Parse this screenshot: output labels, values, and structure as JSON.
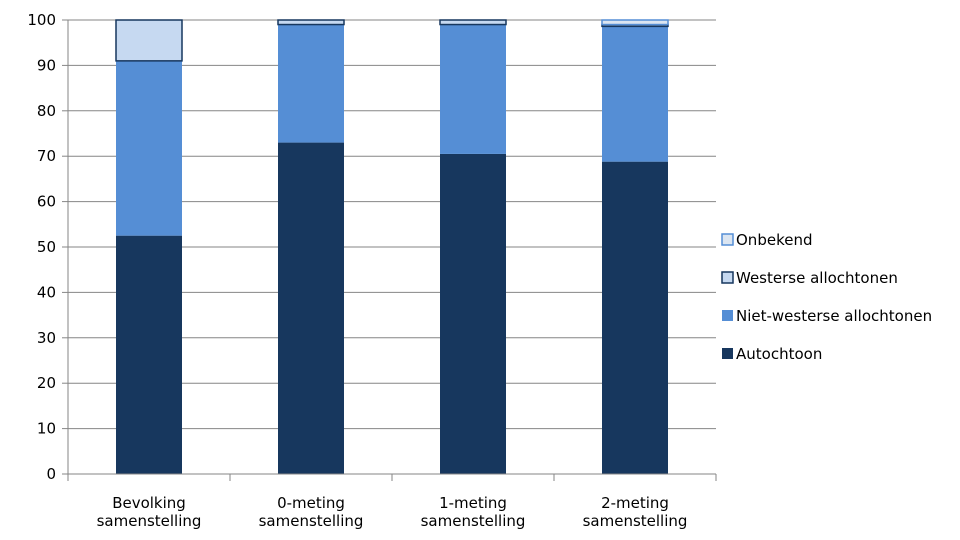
{
  "chart_data": {
    "type": "bar",
    "stacked": true,
    "title": "",
    "xlabel": "",
    "ylabel": "",
    "ylim": [
      0,
      100
    ],
    "yticks": [
      0,
      10,
      20,
      30,
      40,
      50,
      60,
      70,
      80,
      90,
      100
    ],
    "grid": true,
    "legend_position": "right",
    "categories": [
      [
        "Bevolking",
        "samenstelling"
      ],
      [
        "0-meting",
        "samenstelling"
      ],
      [
        "1-meting",
        "samenstelling"
      ],
      [
        "2-meting",
        "samenstelling"
      ]
    ],
    "series": [
      {
        "name": "Autochtoon",
        "color": "#17375e",
        "values": [
          52.5,
          73,
          70.5,
          68.8
        ]
      },
      {
        "name": "Niet-westerse allochtonen",
        "color": "#558ed5",
        "values": [
          38.5,
          26,
          28.5,
          29.8
        ]
      },
      {
        "name": "Westerse allochtonen",
        "color": "#c6d9f1",
        "edge": "#17375e",
        "values": [
          9,
          1,
          1,
          0.4
        ]
      },
      {
        "name": "Onbekend",
        "color": "#dbe5f1",
        "edge": "#558ed5",
        "values": [
          0,
          0,
          0,
          1
        ]
      }
    ],
    "legend_order": [
      "Onbekend",
      "Westerse allochtonen",
      "Niet-westerse allochtonen",
      "Autochtoon"
    ]
  }
}
